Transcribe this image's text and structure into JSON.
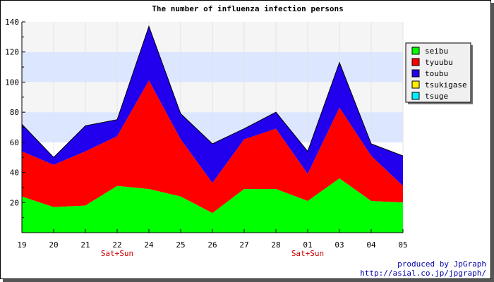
{
  "chart_data": {
    "type": "area",
    "stacked": true,
    "title": "The number of influenza infection persons",
    "categories": [
      "19",
      "20",
      "21",
      "22",
      "24",
      "25",
      "26",
      "27",
      "28",
      "01",
      "03",
      "04",
      "05"
    ],
    "weekend_labels": [
      {
        "category": "22",
        "text": "Sat+Sun"
      },
      {
        "category": "01",
        "text": "Sat+Sun"
      }
    ],
    "ylim": [
      0,
      140
    ],
    "yticks": [
      20,
      40,
      60,
      80,
      100,
      120,
      140
    ],
    "series": [
      {
        "name": "seibu",
        "color": "#00ff00",
        "values": [
          24,
          17,
          18,
          31,
          29,
          24,
          13,
          29,
          29,
          21,
          36,
          21,
          20
        ]
      },
      {
        "name": "tyuubu",
        "color": "#ff0000",
        "values": [
          30,
          28,
          36,
          33,
          72,
          38,
          20,
          33,
          40,
          18,
          47,
          30,
          11
        ]
      },
      {
        "name": "toubu",
        "color": "#2200ee",
        "values": [
          18,
          5,
          17,
          11,
          36,
          17,
          26,
          7,
          11,
          15,
          30,
          8,
          20
        ]
      },
      {
        "name": "tsukigase",
        "color": "#ffee00",
        "values": [
          0,
          0,
          0,
          0,
          0,
          0,
          0,
          0,
          0,
          0,
          0,
          0,
          0
        ]
      },
      {
        "name": "tsuge",
        "color": "#00eeff",
        "values": [
          0,
          0,
          0,
          0,
          0,
          0,
          0,
          0,
          0,
          0,
          0,
          0,
          0
        ]
      }
    ],
    "bands": [
      "#f5f5f5",
      "#dde6ff"
    ],
    "legend_position": "right",
    "credit_line1": "produced by JpGraph",
    "credit_line2": "http://asial.co.jp/jpgraph/"
  }
}
